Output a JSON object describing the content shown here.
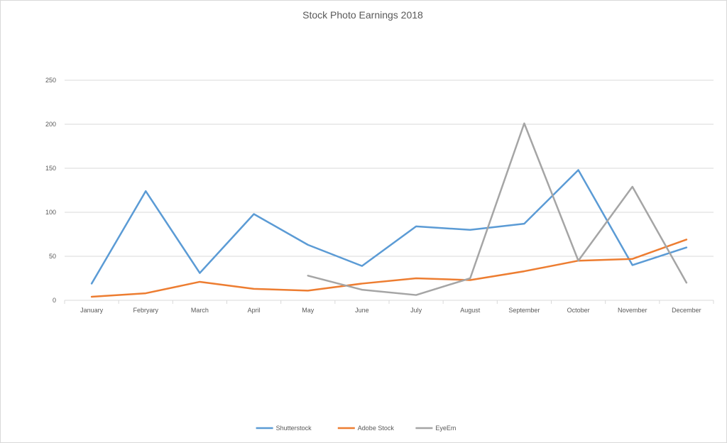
{
  "chart_data": {
    "type": "line",
    "title": "Stock Photo Earnings 2018",
    "xlabel": "",
    "ylabel": "",
    "categories": [
      "January",
      "Febryary",
      "March",
      "April",
      "May",
      "June",
      "July",
      "August",
      "September",
      "October",
      "November",
      "December"
    ],
    "ylim": [
      0,
      250
    ],
    "yticks": [
      0,
      50,
      100,
      150,
      200,
      250
    ],
    "grid": true,
    "legend_position": "bottom",
    "series": [
      {
        "name": "Shutterstock",
        "color": "#5b9bd5",
        "values": [
          19,
          124,
          31,
          98,
          63,
          39,
          84,
          80,
          87,
          148,
          40,
          60
        ]
      },
      {
        "name": "Adobe Stock",
        "color": "#ed7d31",
        "values": [
          4,
          8,
          21,
          13,
          11,
          19,
          25,
          23,
          33,
          45,
          47,
          69
        ]
      },
      {
        "name": "EyeEm",
        "color": "#a5a5a5",
        "values": [
          null,
          null,
          null,
          null,
          28,
          12,
          6,
          25,
          201,
          45,
          129,
          20
        ]
      }
    ]
  }
}
